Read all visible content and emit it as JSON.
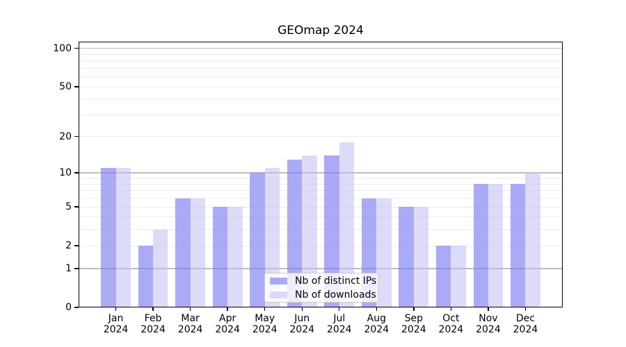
{
  "chart_data": {
    "type": "bar",
    "title": "GEOmap 2024",
    "categories": [
      "Jan",
      "Feb",
      "Mar",
      "Apr",
      "May",
      "Jun",
      "Jul",
      "Aug",
      "Sep",
      "Oct",
      "Nov",
      "Dec"
    ],
    "category_year": "2024",
    "series": [
      {
        "name": "Nb of distinct IPs",
        "color": "#7c7cf1",
        "alpha": 0.65,
        "values": [
          11,
          2,
          6,
          5,
          10,
          13,
          14,
          6,
          5,
          2,
          8,
          8
        ]
      },
      {
        "name": "Nb of downloads",
        "color": "#bfbff2",
        "alpha": 0.55,
        "values": [
          11,
          3,
          6,
          5,
          11,
          14,
          18,
          6,
          5,
          2,
          8,
          10
        ]
      }
    ],
    "yscale": "log1p",
    "ylim": [
      0,
      113
    ],
    "yticks": [
      0,
      1,
      2,
      5,
      10,
      20,
      50,
      100
    ],
    "major_gridlines": [
      1,
      10,
      100
    ],
    "minor_gridlines": [
      2,
      3,
      4,
      5,
      6,
      7,
      8,
      9,
      20,
      30,
      40,
      50,
      60,
      70,
      80,
      90
    ],
    "grid": true,
    "legend_position": "lower center"
  }
}
